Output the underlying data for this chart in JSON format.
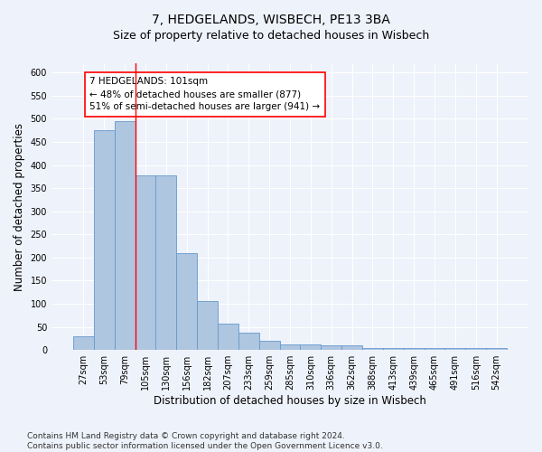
{
  "title": "7, HEDGELANDS, WISBECH, PE13 3BA",
  "subtitle": "Size of property relative to detached houses in Wisbech",
  "xlabel": "Distribution of detached houses by size in Wisbech",
  "ylabel": "Number of detached properties",
  "bar_color": "#aec6e0",
  "bar_edge_color": "#6699cc",
  "background_color": "#eef2fa",
  "grid_color": "#ffffff",
  "categories": [
    "27sqm",
    "53sqm",
    "79sqm",
    "105sqm",
    "130sqm",
    "156sqm",
    "182sqm",
    "207sqm",
    "233sqm",
    "259sqm",
    "285sqm",
    "310sqm",
    "336sqm",
    "362sqm",
    "388sqm",
    "413sqm",
    "439sqm",
    "465sqm",
    "491sqm",
    "516sqm",
    "542sqm"
  ],
  "values": [
    30,
    475,
    495,
    378,
    378,
    210,
    105,
    57,
    38,
    20,
    13,
    13,
    10,
    10,
    5,
    5,
    5,
    5,
    5,
    5,
    5
  ],
  "vline_x": 2.5,
  "vline_color": "red",
  "annotation_text": "7 HEDGELANDS: 101sqm\n← 48% of detached houses are smaller (877)\n51% of semi-detached houses are larger (941) →",
  "annotation_box_color": "white",
  "annotation_box_edge_color": "red",
  "ylim": [
    0,
    620
  ],
  "yticks": [
    0,
    50,
    100,
    150,
    200,
    250,
    300,
    350,
    400,
    450,
    500,
    550,
    600
  ],
  "footnote": "Contains HM Land Registry data © Crown copyright and database right 2024.\nContains public sector information licensed under the Open Government Licence v3.0.",
  "title_fontsize": 10,
  "subtitle_fontsize": 9,
  "xlabel_fontsize": 8.5,
  "ylabel_fontsize": 8.5,
  "tick_fontsize": 7,
  "annotation_fontsize": 7.5,
  "footnote_fontsize": 6.5
}
